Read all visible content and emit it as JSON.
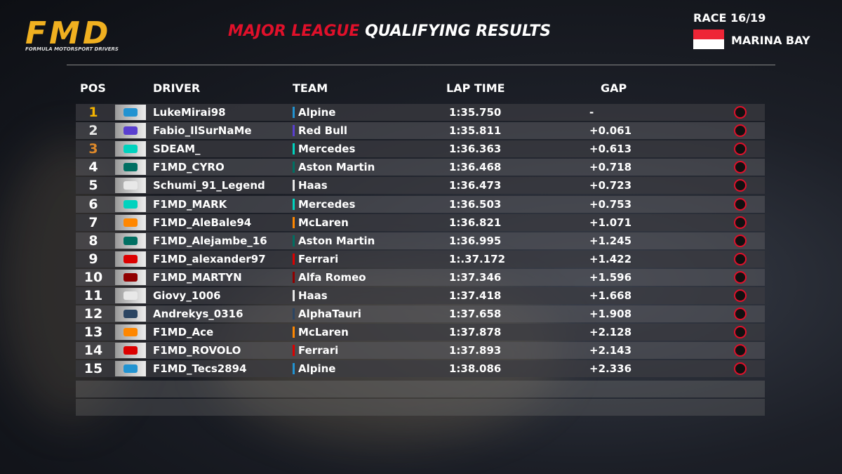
{
  "header": {
    "logo": "FMD",
    "logo_subtitle": "FORMULA MOTORSPORT DRIVERS",
    "title_highlight": "MAJOR LEAGUE",
    "title": "QUALIFYING RESULTS",
    "race": "RACE 16/19",
    "venue": "MARINA BAY"
  },
  "table": {
    "columns": [
      "POS",
      "DRIVER",
      "TEAM",
      "LAP TIME",
      "GAP"
    ],
    "rows": [
      {
        "pos": "1",
        "driver": "LukeMirai98",
        "team": "Alpine",
        "lap_time": "1:35.750",
        "gap": "-",
        "team_color": "#2293d1",
        "pos_color": "#f5b400"
      },
      {
        "pos": "2",
        "driver": "Fabio_IlSurNaMe",
        "team": "Red Bull",
        "lap_time": "1:35.811",
        "gap": "+0.061",
        "team_color": "#5a3fd0",
        "pos_color": "#e8e8e8"
      },
      {
        "pos": "3",
        "driver": "SDEAM_",
        "team": "Mercedes",
        "lap_time": "1:36.363",
        "gap": "+0.613",
        "team_color": "#00d2be",
        "pos_color": "#e08a2a"
      },
      {
        "pos": "4",
        "driver": "F1MD_CYRO",
        "team": "Aston Martin",
        "lap_time": "1:36.468",
        "gap": "+0.718",
        "team_color": "#006f62",
        "pos_color": "#ffffff"
      },
      {
        "pos": "5",
        "driver": "Schumi_91_Legend",
        "team": "Haas",
        "lap_time": "1:36.473",
        "gap": "+0.723",
        "team_color": "#e8e8e8",
        "pos_color": "#ffffff"
      },
      {
        "pos": "6",
        "driver": "F1MD_MARK",
        "team": "Mercedes",
        "lap_time": "1:36.503",
        "gap": "+0.753",
        "team_color": "#00d2be",
        "pos_color": "#ffffff"
      },
      {
        "pos": "7",
        "driver": "F1MD_AleBale94",
        "team": "McLaren",
        "lap_time": "1:36.821",
        "gap": "+1.071",
        "team_color": "#ff8700",
        "pos_color": "#ffffff"
      },
      {
        "pos": "8",
        "driver": "F1MD_Alejambe_16",
        "team": "Aston Martin",
        "lap_time": "1:36.995",
        "gap": "+1.245",
        "team_color": "#006f62",
        "pos_color": "#ffffff"
      },
      {
        "pos": "9",
        "driver": "F1MD_alexander97",
        "team": "Ferrari",
        "lap_time": "1:.37.172",
        "gap": "+1.422",
        "team_color": "#dc0000",
        "pos_color": "#ffffff"
      },
      {
        "pos": "10",
        "driver": "F1MD_MARTYN",
        "team": "Alfa Romeo",
        "lap_time": "1:37.346",
        "gap": "+1.596",
        "team_color": "#900000",
        "pos_color": "#ffffff"
      },
      {
        "pos": "11",
        "driver": "Giovy_1006",
        "team": "Haas",
        "lap_time": "1:37.418",
        "gap": "+1.668",
        "team_color": "#e8e8e8",
        "pos_color": "#ffffff"
      },
      {
        "pos": "12",
        "driver": "Andrekys_0316",
        "team": "AlphaTauri",
        "lap_time": "1:37.658",
        "gap": "+1.908",
        "team_color": "#2b4562",
        "pos_color": "#ffffff"
      },
      {
        "pos": "13",
        "driver": "F1MD_Ace",
        "team": "McLaren",
        "lap_time": "1:37.878",
        "gap": "+2.128",
        "team_color": "#ff8700",
        "pos_color": "#ffffff"
      },
      {
        "pos": "14",
        "driver": "F1MD_ROVOLO",
        "team": "Ferrari",
        "lap_time": "1:37.893",
        "gap": "+2.143",
        "team_color": "#dc0000",
        "pos_color": "#ffffff"
      },
      {
        "pos": "15",
        "driver": "F1MD_Tecs2894",
        "team": "Alpine",
        "lap_time": "1:38.086",
        "gap": "+2.336",
        "team_color": "#2293d1",
        "pos_color": "#ffffff"
      }
    ]
  }
}
